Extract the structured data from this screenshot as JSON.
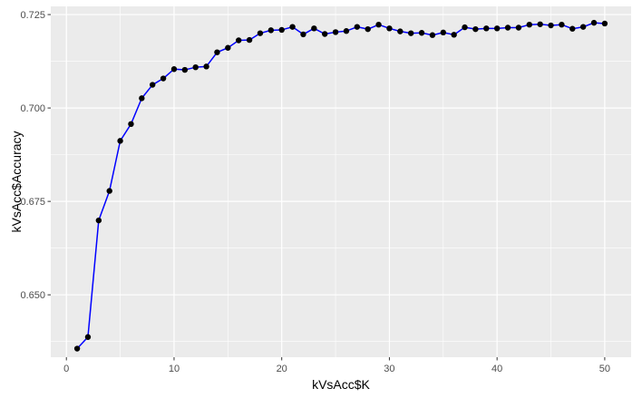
{
  "chart_data": {
    "type": "line",
    "xlabel": "kVsAcc$K",
    "ylabel": "kVsAcc$Accuracy",
    "xlim": [
      -1.45,
      52.45
    ],
    "ylim": [
      0.6333,
      0.7272
    ],
    "x_ticks": [
      0,
      10,
      20,
      30,
      40,
      50
    ],
    "x_tick_labels": [
      "0",
      "10",
      "20",
      "30",
      "40",
      "50"
    ],
    "y_ticks": [
      0.65,
      0.675,
      0.7,
      0.725
    ],
    "y_tick_labels": [
      "0.650",
      "0.675",
      "0.700",
      "0.725"
    ],
    "grid": true,
    "panel_background": "#ebebeb",
    "grid_color": "#ffffff",
    "line_color": "#0000ff",
    "point_color": "#000000",
    "series": [
      {
        "x": [
          1,
          2,
          3,
          4,
          5,
          6,
          7,
          8,
          9,
          10,
          11,
          12,
          13,
          14,
          15,
          16,
          17,
          18,
          19,
          20,
          21,
          22,
          23,
          24,
          25,
          26,
          27,
          28,
          29,
          30,
          31,
          32,
          33,
          34,
          35,
          36,
          37,
          38,
          39,
          40,
          41,
          42,
          43,
          44,
          45,
          46,
          47,
          48,
          49,
          50
        ],
        "values": [
          0.6356,
          0.6387,
          0.6699,
          0.6778,
          0.6912,
          0.6957,
          0.7026,
          0.7062,
          0.7079,
          0.7104,
          0.7102,
          0.7109,
          0.7111,
          0.7149,
          0.7161,
          0.7181,
          0.7182,
          0.72,
          0.7208,
          0.7209,
          0.7217,
          0.7197,
          0.7213,
          0.7198,
          0.7203,
          0.7206,
          0.7217,
          0.7211,
          0.7223,
          0.7213,
          0.7205,
          0.72,
          0.7201,
          0.7195,
          0.7202,
          0.7196,
          0.7216,
          0.7211,
          0.7213,
          0.7213,
          0.7215,
          0.7215,
          0.7223,
          0.7224,
          0.7221,
          0.7223,
          0.7212,
          0.7217,
          0.7228,
          0.7226
        ]
      }
    ]
  }
}
